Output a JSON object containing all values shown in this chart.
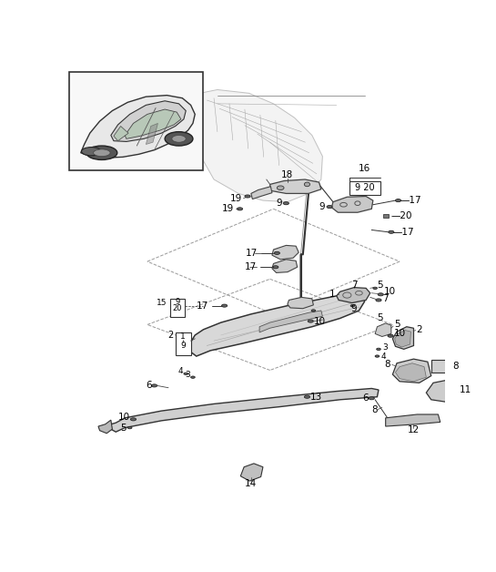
{
  "background_color": "#f5f5f5",
  "border_color": "#333333",
  "label_fontsize": 7.5,
  "dpi": 100,
  "fig_width": 5.45,
  "fig_height": 6.28
}
